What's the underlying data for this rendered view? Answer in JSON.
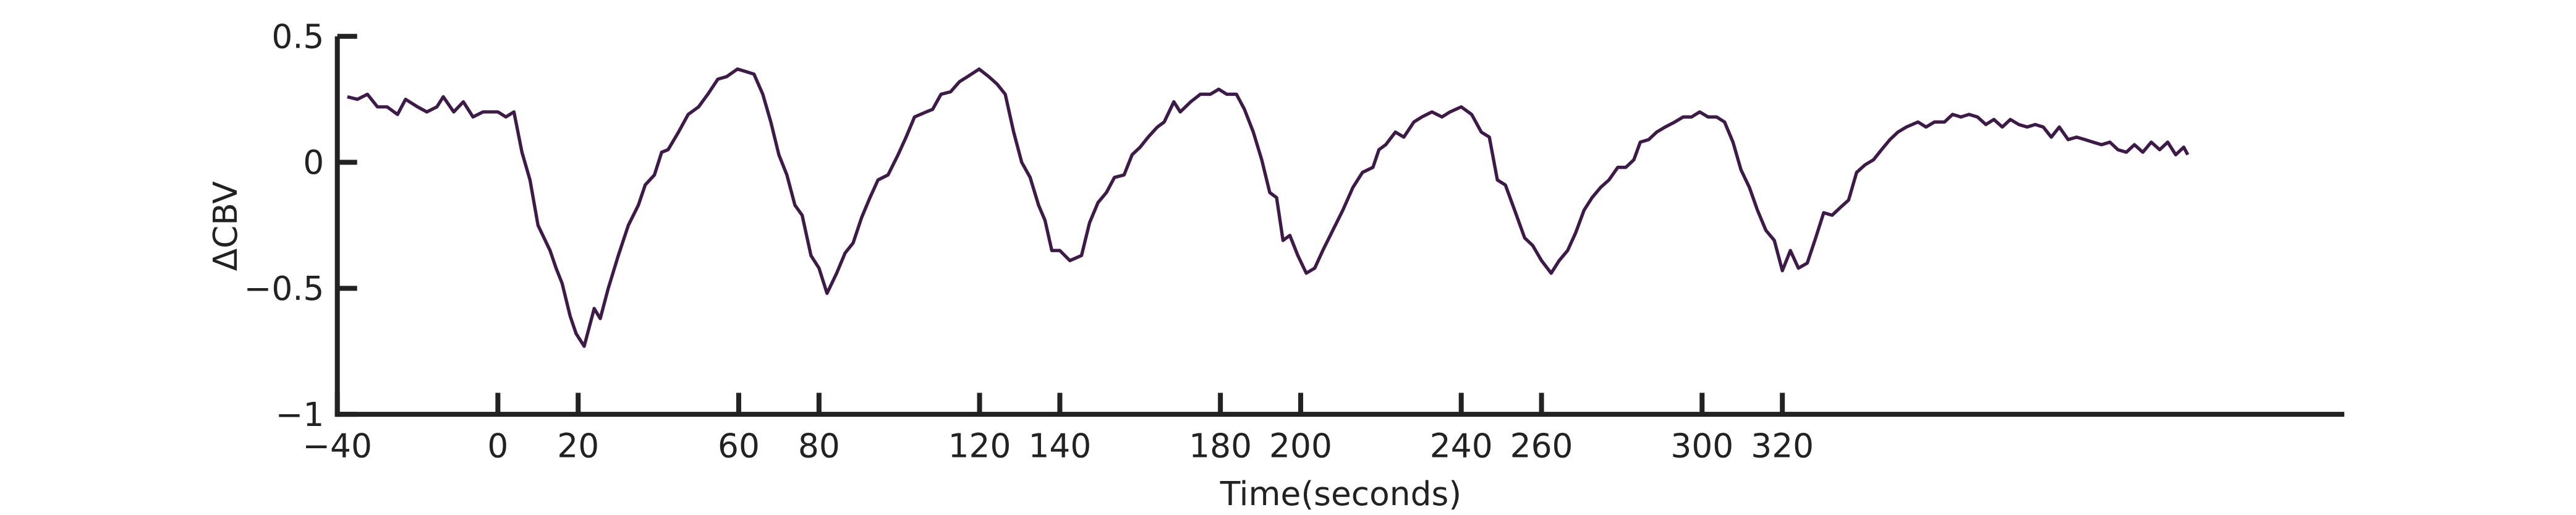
{
  "chart_data": {
    "type": "line",
    "xlabel": "Time(seconds)",
    "ylabel": "ΔCBV",
    "color": "#3d1a47",
    "xlim": [
      -40,
      460
    ],
    "ylim": [
      -1,
      0.5
    ],
    "xticks": [
      {
        "value": -40,
        "label": "−40"
      },
      0,
      20,
      60,
      80,
      120,
      140,
      180,
      200,
      240,
      260,
      300,
      320
    ],
    "yticks": [
      {
        "value": -1,
        "label": "−1"
      },
      {
        "value": -0.5,
        "label": "−0.5"
      },
      0,
      0.5
    ],
    "x": [
      -37.5,
      -35,
      -32.5,
      -30,
      -27.6,
      -25,
      -23,
      -20,
      -17.7,
      -15.2,
      -13.6,
      -11,
      -8.6,
      -6.2,
      -3.7,
      0,
      2,
      4,
      6,
      8,
      10,
      13,
      14.5,
      16,
      18,
      19.5,
      21.5,
      24,
      25.5,
      27.5,
      30,
      32.5,
      35,
      36.7,
      39,
      40.8,
      42.4,
      45,
      47.4,
      50,
      52.3,
      54.8,
      57,
      59.7,
      61.8,
      63.8,
      66,
      68,
      70,
      72,
      74,
      75.8,
      78,
      80,
      82,
      84.4,
      86.5,
      88.5,
      90.6,
      92.7,
      94.7,
      97.2,
      99.7,
      101.7,
      103.8,
      106.7,
      108.3,
      110.4,
      112.8,
      115,
      117,
      119.9,
      122.3,
      124.4,
      126.4,
      128.5,
      130.5,
      132.6,
      134.7,
      136.3,
      138,
      140,
      142.5,
      145.4,
      147.4,
      149.5,
      151.6,
      153.6,
      156,
      158,
      160,
      162,
      164.3,
      166,
      168.4,
      170,
      172.6,
      175,
      177.5,
      179.6,
      181.6,
      184,
      186,
      188.2,
      190.3,
      192.3,
      194,
      195.6,
      197.3,
      199.3,
      201.4,
      203.5,
      205.5,
      208,
      210.5,
      213,
      215.4,
      218,
      219.5,
      221.2,
      223.6,
      225.7,
      228.2,
      230.2,
      232.7,
      235.2,
      237.2,
      240,
      242.6,
      245,
      247,
      249,
      251,
      253.3,
      255.8,
      257.8,
      260,
      262.4,
      264.4,
      266.5,
      268.5,
      270.6,
      272.6,
      274.7,
      276.8,
      279,
      281,
      283,
      284.6,
      286.7,
      288.7,
      290.8,
      293.2,
      295.3,
      297.4,
      299.4,
      301.5,
      303.6,
      305.6,
      307.7,
      309.7,
      311.8,
      313.8,
      315.9,
      318,
      320,
      322,
      324,
      326.2,
      328.3,
      330.3,
      332.4,
      334.4,
      336.5,
      338.5,
      340.6,
      342.7,
      344.7,
      346.8,
      348.8,
      350.9,
      353.8,
      355.8,
      357.9,
      360.4,
      362.4,
      364.5,
      366.5,
      368.6,
      370.7,
      372.7,
      374.8,
      376.8,
      378.9,
      381,
      383,
      385,
      387,
      389,
      391.2,
      393.3,
      395.4,
      397.4,
      399.5,
      401.6,
      403.6,
      405.7,
      407.7,
      409.8,
      411.9,
      414,
      416,
      418,
      420,
      421
    ],
    "values": [
      0.26,
      0.25,
      0.27,
      0.22,
      0.22,
      0.19,
      0.25,
      0.22,
      0.2,
      0.22,
      0.26,
      0.2,
      0.24,
      0.18,
      0.2,
      0.2,
      0.18,
      0.2,
      0.04,
      -0.07,
      -0.25,
      -0.35,
      -0.42,
      -0.48,
      -0.61,
      -0.68,
      -0.73,
      -0.58,
      -0.62,
      -0.5,
      -0.37,
      -0.25,
      -0.17,
      -0.09,
      -0.05,
      0.04,
      0.05,
      0.12,
      0.19,
      0.22,
      0.27,
      0.33,
      0.34,
      0.37,
      0.36,
      0.35,
      0.27,
      0.16,
      0.03,
      -0.05,
      -0.17,
      -0.21,
      -0.37,
      -0.42,
      -0.52,
      -0.44,
      -0.36,
      -0.32,
      -0.22,
      -0.14,
      -0.07,
      -0.05,
      0.03,
      0.1,
      0.18,
      0.2,
      0.21,
      0.27,
      0.28,
      0.32,
      0.34,
      0.37,
      0.34,
      0.31,
      0.27,
      0.12,
      0,
      -0.06,
      -0.17,
      -0.23,
      -0.35,
      -0.35,
      -0.39,
      -0.37,
      -0.24,
      -0.16,
      -0.12,
      -0.06,
      -0.05,
      0.03,
      0.06,
      0.1,
      0.14,
      0.16,
      0.24,
      0.2,
      0.24,
      0.27,
      0.27,
      0.29,
      0.27,
      0.27,
      0.21,
      0.12,
      0.01,
      -0.12,
      -0.14,
      -0.31,
      -0.29,
      -0.37,
      -0.44,
      -0.42,
      -0.35,
      -0.27,
      -0.19,
      -0.1,
      -0.04,
      -0.02,
      0.05,
      0.07,
      0.12,
      0.1,
      0.16,
      0.18,
      0.2,
      0.18,
      0.2,
      0.22,
      0.19,
      0.12,
      0.1,
      -0.07,
      -0.09,
      -0.19,
      -0.3,
      -0.33,
      -0.39,
      -0.44,
      -0.39,
      -0.35,
      -0.28,
      -0.19,
      -0.14,
      -0.1,
      -0.07,
      -0.02,
      -0.02,
      0.01,
      0.08,
      0.09,
      0.12,
      0.14,
      0.16,
      0.18,
      0.18,
      0.2,
      0.18,
      0.18,
      0.16,
      0.08,
      -0.03,
      -0.1,
      -0.19,
      -0.27,
      -0.31,
      -0.43,
      -0.35,
      -0.42,
      -0.4,
      -0.3,
      -0.2,
      -0.21,
      -0.18,
      -0.15,
      -0.04,
      -0.01,
      0.01,
      0.05,
      0.09,
      0.12,
      0.14,
      0.16,
      0.14,
      0.16,
      0.16,
      0.19,
      0.18,
      0.19,
      0.18,
      0.15,
      0.17,
      0.14,
      0.17,
      0.15,
      0.14,
      0.15,
      0.14,
      0.1,
      0.14,
      0.09,
      0.1,
      0.09,
      0.08,
      0.07,
      0.08,
      0.05,
      0.04,
      0.07,
      0.04,
      0.08,
      0.05,
      0.08,
      0.03,
      0.06,
      0.03
    ]
  }
}
